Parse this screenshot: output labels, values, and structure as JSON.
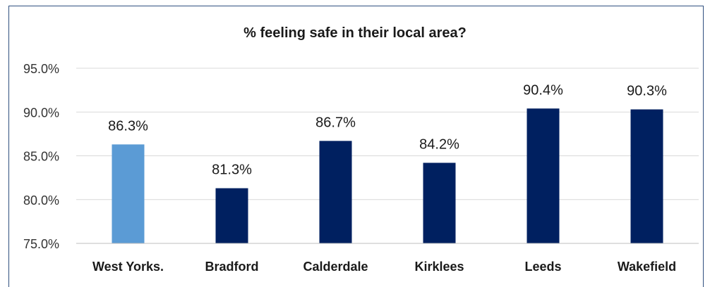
{
  "chart_data": {
    "type": "bar",
    "title": "% feeling safe in their local area?",
    "categories": [
      "West Yorks.",
      "Bradford",
      "Calderdale",
      "Kirklees",
      "Leeds",
      "Wakefield"
    ],
    "values": [
      86.3,
      81.3,
      86.7,
      84.2,
      90.4,
      90.3
    ],
    "data_labels": [
      "86.3%",
      "81.3%",
      "86.7%",
      "84.2%",
      "90.4%",
      "90.3%"
    ],
    "bar_colors": [
      "#5b9bd5",
      "#002060",
      "#002060",
      "#002060",
      "#002060",
      "#002060"
    ],
    "ylim": [
      75,
      95
    ],
    "yticks": [
      75,
      80,
      85,
      90,
      95
    ],
    "ytick_labels": [
      "75.0%",
      "80.0%",
      "85.0%",
      "90.0%",
      "95.0%"
    ],
    "grid": true,
    "legend": "none",
    "xlabel": "",
    "ylabel": ""
  }
}
